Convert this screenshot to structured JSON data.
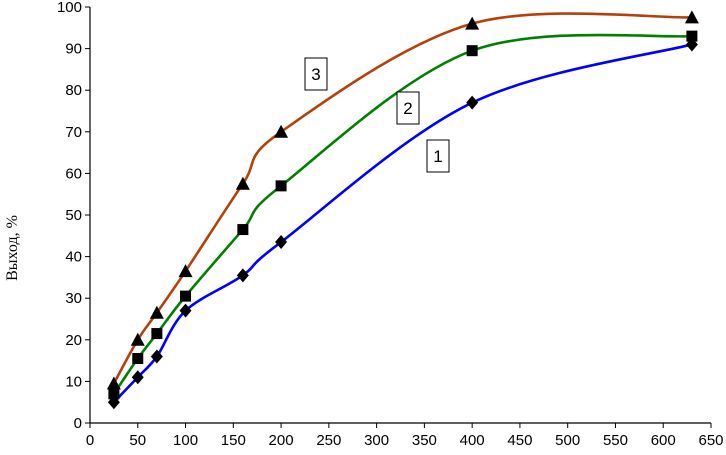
{
  "chart_data": {
    "type": "line",
    "title": "",
    "xlabel": "",
    "ylabel": "Выход, %",
    "xlim": [
      0,
      650
    ],
    "ylim": [
      0,
      100
    ],
    "x_ticks": [
      0,
      50,
      100,
      150,
      200,
      250,
      300,
      350,
      400,
      450,
      500,
      550,
      600,
      650
    ],
    "y_ticks": [
      0,
      10,
      20,
      30,
      40,
      50,
      60,
      70,
      80,
      90,
      100
    ],
    "grid": false,
    "legend": "none",
    "series": [
      {
        "name": "1",
        "color": "#0000ff",
        "marker": "diamond",
        "x": [
          25,
          50,
          70,
          100,
          160,
          200,
          400,
          630
        ],
        "y": [
          5,
          11,
          16,
          27,
          35.5,
          43.5,
          77,
          91
        ]
      },
      {
        "name": "2",
        "color": "#008000",
        "marker": "square",
        "x": [
          25,
          50,
          70,
          100,
          160,
          200,
          400,
          630
        ],
        "y": [
          7,
          15.5,
          21.5,
          30.5,
          46.5,
          57,
          89.5,
          93
        ]
      },
      {
        "name": "3",
        "color": "#b5400a",
        "marker": "triangle",
        "x": [
          25,
          50,
          70,
          100,
          160,
          200,
          400,
          630
        ],
        "y": [
          9.5,
          20,
          26.5,
          36.5,
          57.5,
          70,
          96,
          97.5
        ]
      }
    ]
  }
}
